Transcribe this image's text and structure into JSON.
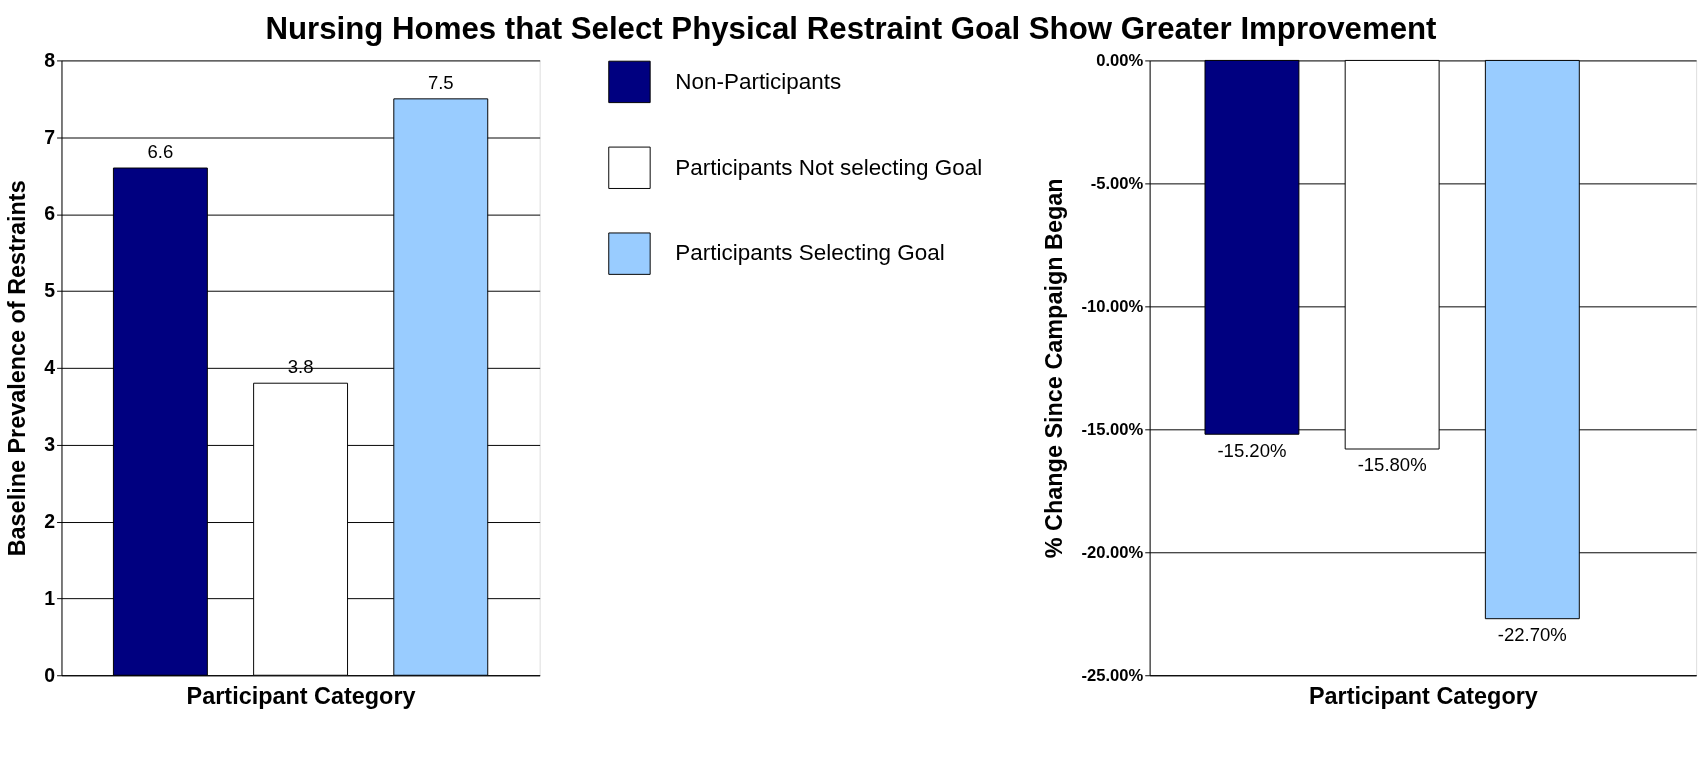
{
  "chart_data": [
    {
      "type": "bar",
      "title": "Nursing Homes that Select Physical Restraint Goal Show Greater Improvement",
      "xlabel": "Participant Category",
      "ylabel": "Baseline Prevalence of Restraints",
      "categories": [
        null
      ],
      "series": [
        {
          "name": "Non-Participants",
          "color": "#000080",
          "values": [
            6.6
          ]
        },
        {
          "name": "Participants Not selecting Goal",
          "color": "#ffffff",
          "values": [
            3.8
          ]
        },
        {
          "name": "Participants Selecting Goal",
          "color": "#99ccff",
          "values": [
            7.5
          ]
        }
      ],
      "ylim": [
        0,
        8
      ],
      "yticks": [
        0,
        1,
        2,
        3,
        4,
        5,
        6,
        7,
        8
      ],
      "grid": "y",
      "data_labels": true,
      "legend": "right"
    },
    {
      "type": "bar",
      "xlabel": "Participant Category",
      "ylabel": "% Change Since Campaign Began",
      "categories": [
        null
      ],
      "series": [
        {
          "color": "#000080",
          "values": [
            -15.2
          ],
          "value_labels": [
            "-15.20%"
          ]
        },
        {
          "color": "#ffffff",
          "values": [
            -15.8
          ],
          "value_labels": [
            "-15.80%"
          ]
        },
        {
          "color": "#99ccff",
          "values": [
            -22.7
          ],
          "value_labels": [
            "-22.70%"
          ]
        }
      ],
      "ylim": [
        -25,
        0
      ],
      "yticks": [
        {
          "value": 0,
          "label": "0.00%"
        },
        {
          "value": -5,
          "label": "-5.00%"
        },
        {
          "value": -10,
          "label": "-10.00%"
        },
        {
          "value": -15,
          "label": "-15.00%"
        },
        {
          "value": -20,
          "label": "-20.00%"
        },
        {
          "value": -25,
          "label": "-25.00%"
        }
      ],
      "grid": "y",
      "legend": false
    }
  ]
}
